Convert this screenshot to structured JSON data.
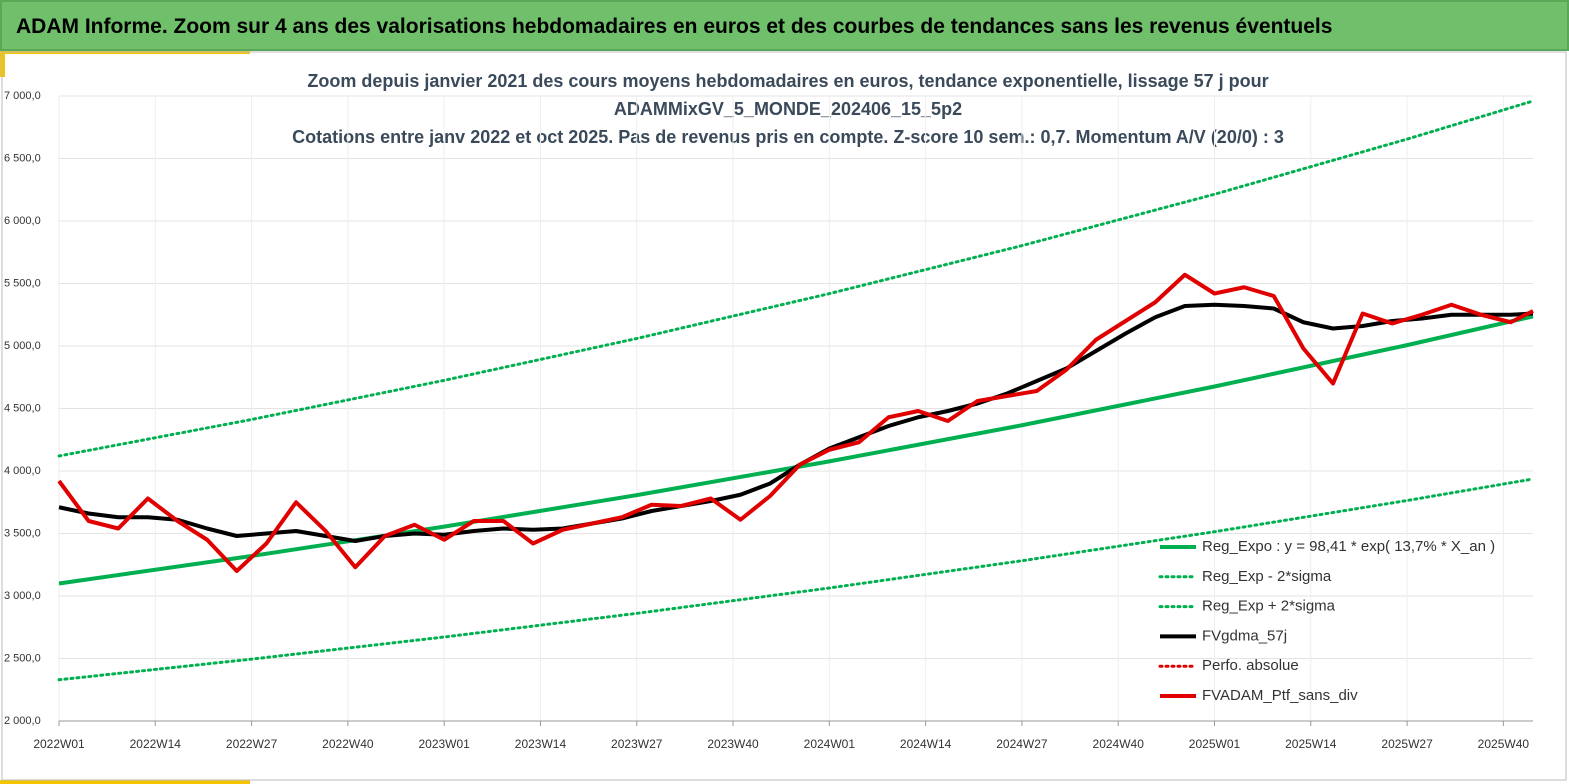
{
  "header": {
    "title": "ADAM Informe. Zoom sur 4 ans des valorisations hebdomadaires en euros et des courbes de tendances sans les revenus éventuels"
  },
  "chart_data": {
    "type": "line",
    "title": [
      "Zoom depuis janvier 2021 des cours moyens hebdomadaires  en euros, tendance exponentielle, lissage 57 j pour",
      "ADAMMixGV_5_MONDE_202406_15_5p2",
      "Cotations entre janv 2022 et oct 2025. Pas de revenus pris en compte. Z-score 10 sem.: 0,7. Momentum A/V (20/0) : 3"
    ],
    "xlim": [
      0,
      199
    ],
    "xticks": [
      {
        "value": 0,
        "label": "2022W01"
      },
      {
        "value": 13,
        "label": "2022W14"
      },
      {
        "value": 26,
        "label": "2022W27"
      },
      {
        "value": 39,
        "label": "2022W40"
      },
      {
        "value": 52,
        "label": "2023W01"
      },
      {
        "value": 65,
        "label": "2023W14"
      },
      {
        "value": 78,
        "label": "2023W27"
      },
      {
        "value": 91,
        "label": "2023W40"
      },
      {
        "value": 104,
        "label": "2024W01"
      },
      {
        "value": 117,
        "label": "2024W14"
      },
      {
        "value": 130,
        "label": "2024W27"
      },
      {
        "value": 143,
        "label": "2024W40"
      },
      {
        "value": 156,
        "label": "2025W01"
      },
      {
        "value": 169,
        "label": "2025W14"
      },
      {
        "value": 182,
        "label": "2025W27"
      },
      {
        "value": 195,
        "label": "2025W40"
      }
    ],
    "ylim": [
      2000,
      7000
    ],
    "yticks": [
      {
        "value": 2000,
        "label": "2 000,0"
      },
      {
        "value": 2500,
        "label": "2 500,0"
      },
      {
        "value": 3000,
        "label": "3 000,0"
      },
      {
        "value": 3500,
        "label": "3 500,0"
      },
      {
        "value": 4000,
        "label": "4 000,0"
      },
      {
        "value": 4500,
        "label": "4 500,0"
      },
      {
        "value": 5000,
        "label": "5 000,0"
      },
      {
        "value": 5500,
        "label": "5 500,0"
      },
      {
        "value": 6000,
        "label": "6 000,0"
      },
      {
        "value": 6500,
        "label": "6 500,0"
      },
      {
        "value": 7000,
        "label": "7 000,0"
      }
    ],
    "grid": true,
    "legend": "lower-right",
    "series": [
      {
        "name": "Reg_Expo : y = 98,41 * exp( 13,7% *  X_an )",
        "color": "#00b050",
        "style": "solid",
        "x": [
          0,
          26,
          52,
          78,
          104,
          130,
          156,
          182,
          199
        ],
        "values": [
          3100,
          3320,
          3555,
          3807,
          4077,
          4366,
          4676,
          5007,
          5237
        ]
      },
      {
        "name": "Reg_Exp - 2*sigma",
        "color": "#00b050",
        "style": "dotted",
        "x": [
          0,
          26,
          52,
          78,
          104,
          130,
          156,
          182,
          199
        ],
        "values": [
          2330,
          2495,
          2672,
          2861,
          3064,
          3282,
          3514,
          3764,
          3936
        ]
      },
      {
        "name": "Reg_Exp + 2*sigma",
        "color": "#00b050",
        "style": "dotted",
        "x": [
          0,
          26,
          52,
          78,
          104,
          130,
          156,
          182,
          199
        ],
        "values": [
          4120,
          4412,
          4725,
          5060,
          5419,
          5803,
          6214,
          6655,
          6960
        ]
      },
      {
        "name": "FVgdma_57j",
        "color": "#000000",
        "style": "solid",
        "x": [
          0,
          4,
          8,
          12,
          16,
          20,
          24,
          28,
          32,
          36,
          40,
          44,
          48,
          52,
          56,
          60,
          64,
          68,
          72,
          76,
          80,
          84,
          88,
          92,
          96,
          100,
          104,
          108,
          112,
          116,
          120,
          124,
          128,
          132,
          136,
          140,
          144,
          148,
          152,
          156,
          160,
          164,
          168,
          172,
          176,
          180,
          184,
          188,
          192,
          196,
          199
        ],
        "values": [
          3710,
          3660,
          3630,
          3630,
          3610,
          3540,
          3480,
          3500,
          3520,
          3480,
          3440,
          3480,
          3500,
          3490,
          3520,
          3540,
          3530,
          3540,
          3580,
          3620,
          3680,
          3720,
          3760,
          3810,
          3900,
          4050,
          4180,
          4270,
          4360,
          4430,
          4480,
          4540,
          4620,
          4720,
          4820,
          4960,
          5100,
          5230,
          5320,
          5330,
          5320,
          5300,
          5190,
          5140,
          5160,
          5200,
          5220,
          5250,
          5250,
          5250,
          5260
        ]
      },
      {
        "name": "Perfo. absolue",
        "color": "#e00000",
        "style": "dotted",
        "x": [],
        "values": []
      },
      {
        "name": "FVADAM_Ptf_sans_div",
        "color": "#e00000",
        "style": "solid",
        "x": [
          0,
          4,
          8,
          12,
          16,
          20,
          24,
          28,
          32,
          36,
          40,
          44,
          48,
          52,
          56,
          60,
          64,
          68,
          72,
          76,
          80,
          84,
          88,
          92,
          96,
          100,
          104,
          108,
          112,
          116,
          120,
          124,
          128,
          132,
          136,
          140,
          144,
          148,
          152,
          156,
          160,
          164,
          168,
          172,
          176,
          180,
          184,
          188,
          192,
          196,
          199
        ],
        "values": [
          3920,
          3600,
          3540,
          3780,
          3600,
          3450,
          3200,
          3420,
          3750,
          3520,
          3230,
          3480,
          3570,
          3450,
          3600,
          3600,
          3420,
          3530,
          3580,
          3630,
          3730,
          3720,
          3780,
          3610,
          3800,
          4050,
          4170,
          4230,
          4430,
          4480,
          4400,
          4560,
          4600,
          4640,
          4810,
          5050,
          5200,
          5350,
          5570,
          5420,
          5470,
          5400,
          4980,
          4700,
          5260,
          5180,
          5250,
          5330,
          5250,
          5190,
          5280
        ]
      }
    ]
  }
}
